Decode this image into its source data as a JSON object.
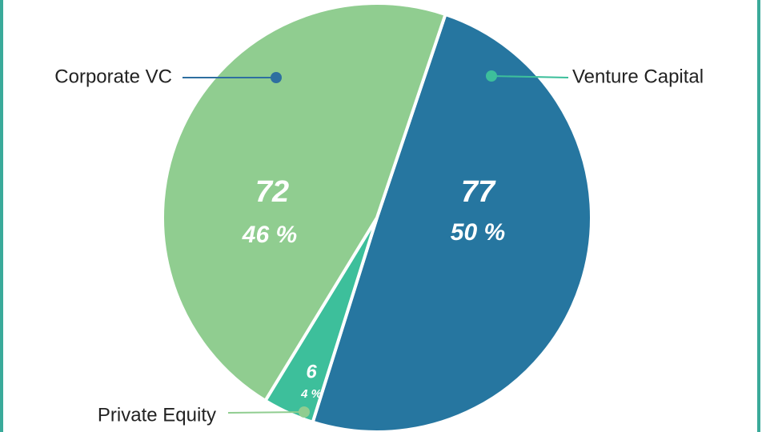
{
  "chart_data": {
    "type": "pie",
    "categories": [
      "Venture Capital",
      "Private Equity",
      "Corporate VC"
    ],
    "values": [
      77,
      6,
      72
    ],
    "percentages": [
      50,
      4,
      46
    ],
    "percentage_labels": [
      "50 %",
      "4 %",
      "46 %"
    ],
    "colors": [
      "#2676a0",
      "#3dbf9b",
      "#90cd90"
    ],
    "legend": "callouts"
  }
}
